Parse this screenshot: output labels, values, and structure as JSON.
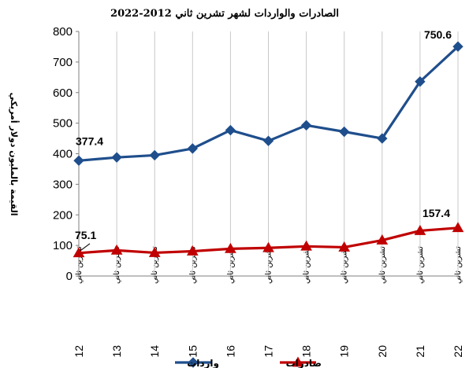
{
  "chart_data": {
    "type": "line",
    "title": "الصادرات والواردات لشهر تشرين ثاني 2012-2022",
    "ylabel": "القيمة بالمليون دولار أمريكي",
    "xlabel": "",
    "ylim": [
      0,
      800
    ],
    "yticks": [
      0,
      100,
      200,
      300,
      400,
      500,
      600,
      700,
      800
    ],
    "grid": "vertical",
    "legend": "bottom",
    "x_sublabel": "تشرين ثاني",
    "categories": [
      "12",
      "13",
      "14",
      "15",
      "16",
      "17",
      "18",
      "19",
      "20",
      "21",
      "22"
    ],
    "series": [
      {
        "name": "واردات",
        "color": "#1F4E8C",
        "marker": "diamond",
        "values": [
          377.4,
          388,
          395,
          417,
          477,
          442,
          493,
          472,
          450,
          636,
          750.6
        ]
      },
      {
        "name": "صادرات",
        "color": "#C00000",
        "marker": "triangle",
        "values": [
          75.1,
          84,
          76,
          81,
          89,
          92,
          97,
          94,
          117,
          148,
          157.4
        ]
      }
    ],
    "annotations": [
      {
        "series": 0,
        "index": 0,
        "text": "377.4"
      },
      {
        "series": 0,
        "index": 10,
        "text": "750.6"
      },
      {
        "series": 1,
        "index": 0,
        "text": "75.1"
      },
      {
        "series": 1,
        "index": 10,
        "text": "157.4"
      }
    ]
  }
}
